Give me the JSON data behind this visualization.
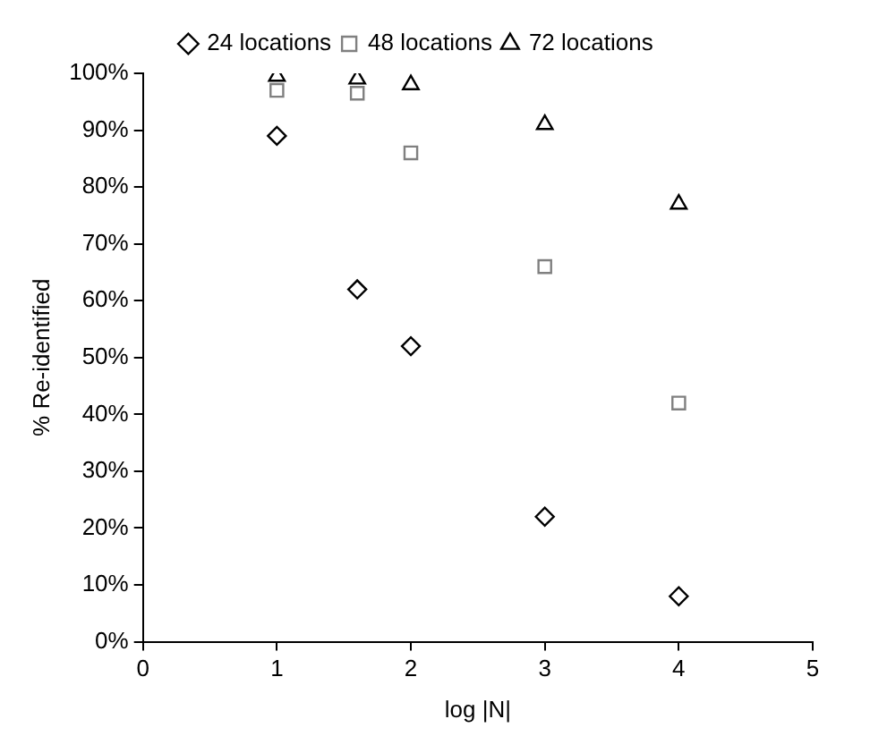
{
  "chart_data": {
    "type": "scatter",
    "xlabel": "log |N|",
    "ylabel": "% Re-identified",
    "x": [
      1,
      1.6,
      2,
      3,
      4
    ],
    "series": [
      {
        "name": "24 locations",
        "color": "#000000",
        "marker": "diamond",
        "values": [
          89,
          62,
          52,
          22,
          8
        ]
      },
      {
        "name": "48 locations",
        "color": "#808080",
        "marker": "square",
        "values": [
          97,
          96.5,
          86,
          66,
          42
        ]
      },
      {
        "name": "72 locations",
        "color": "#000000",
        "marker": "triangle",
        "values": [
          99.5,
          99,
          98,
          91,
          77
        ]
      }
    ],
    "xlim": [
      0,
      5
    ],
    "xticks": [
      0,
      1,
      2,
      3,
      4,
      5
    ],
    "ylim": [
      0,
      100
    ],
    "yticks": [
      {
        "value": 0,
        "label": "0%"
      },
      {
        "value": 10,
        "label": "10%"
      },
      {
        "value": 20,
        "label": "20%"
      },
      {
        "value": 30,
        "label": "30%"
      },
      {
        "value": 40,
        "label": "40%"
      },
      {
        "value": 50,
        "label": "50%"
      },
      {
        "value": 60,
        "label": "60%"
      },
      {
        "value": 70,
        "label": "70%"
      },
      {
        "value": 80,
        "label": "80%"
      },
      {
        "value": 90,
        "label": "90%"
      },
      {
        "value": 100,
        "label": "100%"
      }
    ],
    "grid": false,
    "legend": "top"
  }
}
